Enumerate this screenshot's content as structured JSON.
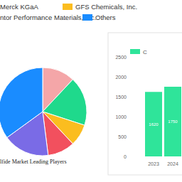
{
  "chart_data": [
    {
      "type": "pie",
      "title": "lfide Market Leading Players",
      "categories": [
        "Merck KGaA",
        "ntor Performance Materials, Inc.",
        "GFS Chemicals, Inc.",
        null,
        null,
        "Others"
      ],
      "values": [
        12,
        18,
        8,
        10,
        17,
        35
      ],
      "colors": [
        "#f4a6a8",
        "#1fd98c",
        "#fbbd1f",
        "#f2505e",
        "#7a6be6",
        "#1a8cff"
      ]
    },
    {
      "type": "bar",
      "categories": [
        "2023",
        "2024"
      ],
      "series": [
        {
          "name": "C",
          "color": "#2fe49a",
          "values": [
            1620,
            1750
          ]
        }
      ],
      "ylim": [
        0,
        2500
      ],
      "yticks": [
        0,
        500,
        1000,
        1500,
        2000,
        2500
      ],
      "data_labels": true,
      "legend": "top",
      "grid": false
    }
  ]
}
